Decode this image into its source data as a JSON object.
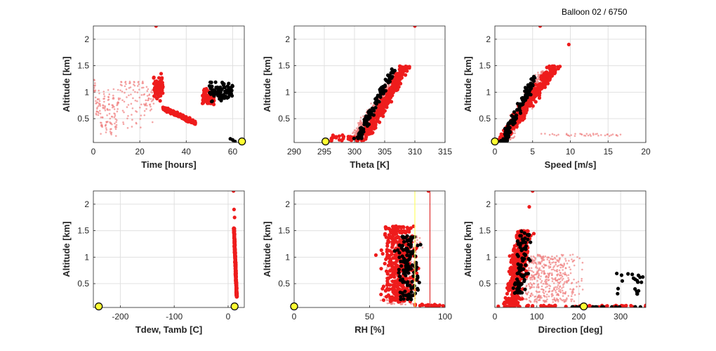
{
  "figure": {
    "title": "Balloon 02 / 6750"
  },
  "colors": {
    "trace_faint": "#f08080",
    "trace": "#ee1c1c",
    "recent": "#000000",
    "marker": "#ffff33",
    "rh_yellow": "#ffff66",
    "rh_red": "#e03030"
  },
  "chart_data": [
    {
      "type": "scatter",
      "xlabel": "Time [hours]",
      "ylabel": "Altitude [km]",
      "xlim": [
        0,
        65
      ],
      "ylim": [
        0.05,
        2.25
      ],
      "xticks": [
        "0",
        "20",
        "40",
        "60"
      ],
      "yticks": [
        "0.5",
        "1",
        "1.5",
        "2"
      ],
      "grid": true,
      "marker": {
        "x": 64,
        "y": 0.07
      }
    },
    {
      "type": "scatter",
      "xlabel": "Theta [K]",
      "ylabel": "Altitude [km]",
      "xlim": [
        290,
        315
      ],
      "ylim": [
        0.05,
        2.25
      ],
      "xticks": [
        "290",
        "295",
        "300",
        "305",
        "310",
        "315"
      ],
      "yticks": [
        "0.5",
        "1",
        "1.5",
        "2"
      ],
      "grid": true,
      "marker": {
        "x": 295.2,
        "y": 0.07
      }
    },
    {
      "type": "scatter",
      "xlabel": "Speed [m/s]",
      "ylabel": "Altitude [km]",
      "xlim": [
        0,
        20
      ],
      "ylim": [
        0.05,
        2.25
      ],
      "xticks": [
        "0",
        "5",
        "10",
        "15",
        "20"
      ],
      "yticks": [
        "0.5",
        "1",
        "1.5",
        "2"
      ],
      "grid": true,
      "marker": {
        "x": 0,
        "y": 0.07
      }
    },
    {
      "type": "scatter",
      "xlabel": "Tdew, Tamb [C]",
      "ylabel": "Altitude [km]",
      "xlim": [
        -250,
        30
      ],
      "ylim": [
        0.05,
        2.25
      ],
      "xticks": [
        "-200",
        "-100",
        "0"
      ],
      "yticks": [
        "0.5",
        "1",
        "1.5",
        "2"
      ],
      "grid": true,
      "marker": {
        "x": -240,
        "y": 0.07
      },
      "marker2": {
        "x": 12,
        "y": 0.07
      }
    },
    {
      "type": "scatter",
      "xlabel": "RH [%]",
      "ylabel": "Altitude [km]",
      "xlim": [
        0,
        100
      ],
      "ylim": [
        0.05,
        2.25
      ],
      "xticks": [
        "0",
        "50",
        "100"
      ],
      "yticks": [
        "0.5",
        "1",
        "1.5",
        "2"
      ],
      "grid": true,
      "marker": {
        "x": 0,
        "y": 0.07
      },
      "vlines": [
        {
          "x": 80,
          "color": "yellow"
        },
        {
          "x": 90,
          "color": "red"
        }
      ]
    },
    {
      "type": "scatter",
      "xlabel": "Direction [deg]",
      "ylabel": "Altitude [km]",
      "xlim": [
        0,
        360
      ],
      "ylim": [
        0.05,
        2.25
      ],
      "xticks": [
        "0",
        "100",
        "200",
        "300"
      ],
      "yticks": [
        "0.5",
        "1",
        "1.5",
        "2"
      ],
      "grid": true,
      "marker": {
        "x": 212,
        "y": 0.07
      }
    }
  ]
}
